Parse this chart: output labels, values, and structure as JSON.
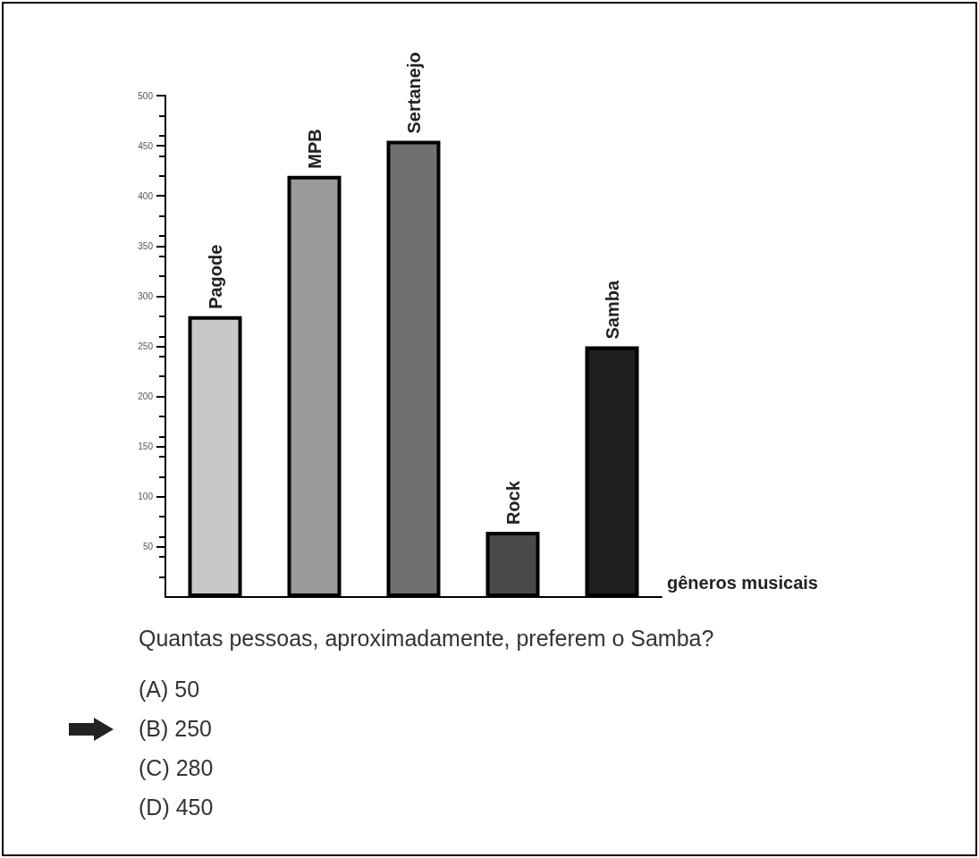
{
  "chart_data": {
    "type": "bar",
    "xlabel": "gêneros musicais",
    "categories": [
      "Pagode",
      "MPB",
      "Sertanejo",
      "Rock",
      "Samba"
    ],
    "values": [
      280,
      420,
      455,
      65,
      250
    ],
    "colors": [
      "#c8c8c8",
      "#9a9a9a",
      "#707070",
      "#4a4a4a",
      "#1e1e1e"
    ],
    "ylim": [
      0,
      500
    ],
    "yticks": [
      50,
      100,
      150,
      200,
      250,
      300,
      350,
      400,
      450,
      500
    ],
    "grid": false,
    "annotations": [
      "Quantas pessoas, aproximadamente, preferem o Samba?",
      "(A) 50",
      "(B) 250",
      "(C) 280",
      "(D) 450"
    ]
  }
}
